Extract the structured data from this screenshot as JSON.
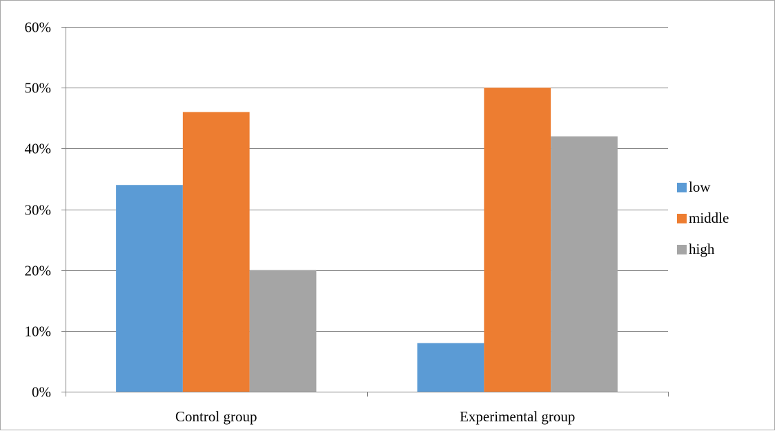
{
  "chart_data": {
    "type": "bar",
    "categories": [
      "Control group",
      "Experimental group"
    ],
    "series": [
      {
        "name": "low",
        "values": [
          34,
          8
        ],
        "color": "#5b9bd5"
      },
      {
        "name": "middle",
        "values": [
          46,
          50
        ],
        "color": "#ed7d31"
      },
      {
        "name": "high",
        "values": [
          20,
          42
        ],
        "color": "#a5a5a5"
      }
    ],
    "title": "",
    "xlabel": "",
    "ylabel": "",
    "ylim": [
      0,
      60
    ],
    "y_ticks": [
      "0%",
      "10%",
      "20%",
      "30%",
      "40%",
      "50%",
      "60%"
    ],
    "grid": true,
    "legend_position": "right",
    "gridline_color": "#808080"
  }
}
